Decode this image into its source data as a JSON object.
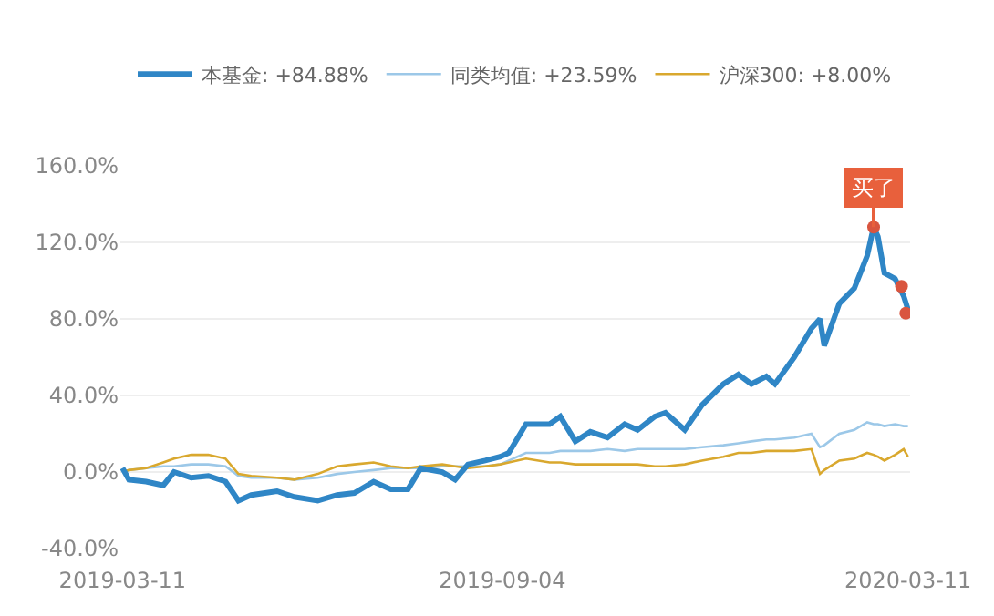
{
  "chart_data": {
    "type": "line",
    "x": [
      "2019-03-11",
      "2019-03-14",
      "2019-03-22",
      "2019-03-30",
      "2019-04-04",
      "2019-04-12",
      "2019-04-20",
      "2019-04-28",
      "2019-05-04",
      "2019-05-10",
      "2019-05-22",
      "2019-05-30",
      "2019-06-10",
      "2019-06-19",
      "2019-06-27",
      "2019-07-06",
      "2019-07-14",
      "2019-07-22",
      "2019-07-28",
      "2019-08-07",
      "2019-08-13",
      "2019-08-19",
      "2019-08-27",
      "2019-09-03",
      "2019-09-07",
      "2019-09-15",
      "2019-09-26",
      "2019-10-01",
      "2019-10-08",
      "2019-10-15",
      "2019-10-23",
      "2019-10-31",
      "2019-11-06",
      "2019-11-14",
      "2019-11-19",
      "2019-11-28",
      "2019-12-06",
      "2019-12-16",
      "2019-12-23",
      "2019-12-29",
      "2020-01-05",
      "2020-01-09",
      "2020-01-18",
      "2020-01-26",
      "2020-01-30",
      "2020-02-01",
      "2020-02-08",
      "2020-02-15",
      "2020-02-21",
      "2020-02-24",
      "2020-02-26",
      "2020-02-29",
      "2020-03-05",
      "2020-03-09",
      "2020-03-11"
    ],
    "series": [
      {
        "name": "本基金: +84.88%",
        "color": "#2f86c6",
        "values": [
          2,
          -4,
          -5,
          -7,
          0,
          -3,
          -2,
          -5,
          -15,
          -12,
          -10,
          -13,
          -15,
          -12,
          -11,
          -5,
          -9,
          -9,
          2,
          0,
          -4,
          4,
          6,
          8,
          10,
          25,
          25,
          29,
          16,
          21,
          18,
          25,
          22,
          29,
          31,
          22,
          35,
          46,
          51,
          46,
          50,
          46,
          60,
          75,
          80,
          66,
          88,
          96,
          113,
          128,
          123,
          104,
          101,
          92,
          85
        ]
      },
      {
        "name": "同类均值: +23.59%",
        "color": "#9cc8e8",
        "values": [
          0,
          1,
          2,
          3,
          3,
          4,
          4,
          3,
          -2,
          -3,
          -3,
          -4,
          -3,
          -1,
          0,
          1,
          2,
          2,
          2,
          3,
          3,
          3,
          3,
          4,
          6,
          10,
          10,
          11,
          11,
          11,
          12,
          11,
          12,
          12,
          12,
          12,
          13,
          14,
          15,
          16,
          17,
          17,
          18,
          20,
          13,
          14,
          20,
          22,
          26,
          25,
          25,
          24,
          25,
          24,
          24
        ]
      },
      {
        "name": "沪深300: +8.00%",
        "color": "#d9a82e",
        "values": [
          0,
          1,
          2,
          5,
          7,
          9,
          9,
          7,
          -1,
          -2,
          -3,
          -4,
          -1,
          3,
          4,
          5,
          3,
          2,
          3,
          4,
          3,
          2,
          3,
          4,
          5,
          7,
          5,
          5,
          4,
          4,
          4,
          4,
          4,
          3,
          3,
          4,
          6,
          8,
          10,
          10,
          11,
          11,
          11,
          12,
          -1,
          1,
          6,
          7,
          10,
          9,
          8,
          6,
          9,
          12,
          8
        ]
      },
      {
        "type": "scatter",
        "marker": "circle",
        "color": "#d9553f",
        "x": [
          "2020-02-24",
          "2020-03-08",
          "2020-03-10"
        ],
        "values": [
          128,
          97,
          83
        ]
      }
    ],
    "xlim": [
      "2019-03-10",
      "2020-03-12"
    ],
    "xticks": [
      {
        "value": "2019-03-11",
        "label": "2019-03-11"
      },
      {
        "value": "2019-09-04",
        "label": "2019-09-04"
      },
      {
        "value": "2020-03-11",
        "label": "2020-03-11"
      }
    ],
    "ylim": [
      -40,
      160
    ],
    "yticks": [
      {
        "value": -40,
        "label": "-40.0%"
      },
      {
        "value": 0,
        "label": "0.0%"
      },
      {
        "value": 40,
        "label": "40.0%"
      },
      {
        "value": 80,
        "label": "80.0%"
      },
      {
        "value": 120,
        "label": "120.0%"
      },
      {
        "value": 160,
        "label": "160.0%"
      }
    ],
    "annotations": [
      {
        "text": "买了",
        "x": "2020-02-24",
        "y": 128
      }
    ],
    "grid": "y",
    "legend": "top",
    "marker": "none",
    "line_style": "solid"
  }
}
